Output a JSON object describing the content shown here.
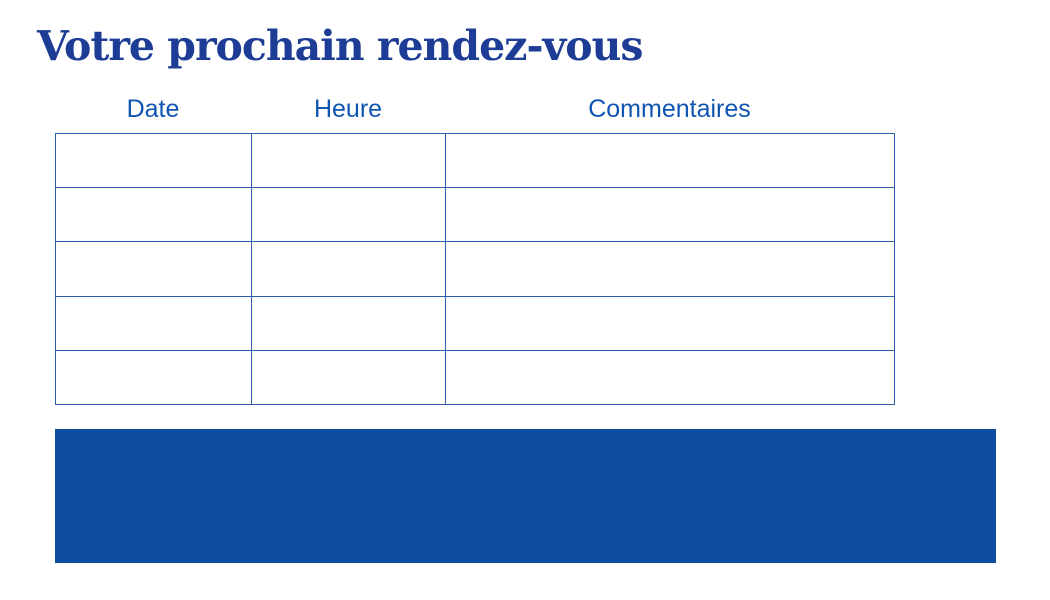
{
  "page": {
    "title": "Votre prochain rendez-vous"
  },
  "table": {
    "headers": [
      "Date",
      "Heure",
      "Commentaires"
    ],
    "rows": [
      [
        "",
        "",
        ""
      ],
      [
        "",
        "",
        ""
      ],
      [
        "",
        "",
        ""
      ],
      [
        "",
        "",
        ""
      ],
      [
        "",
        "",
        ""
      ]
    ]
  },
  "colors": {
    "title_text": "#1d3c95",
    "header_text": "#0f55b2",
    "table_border": "#2e5dad",
    "footer_block": "#0c4da2"
  }
}
